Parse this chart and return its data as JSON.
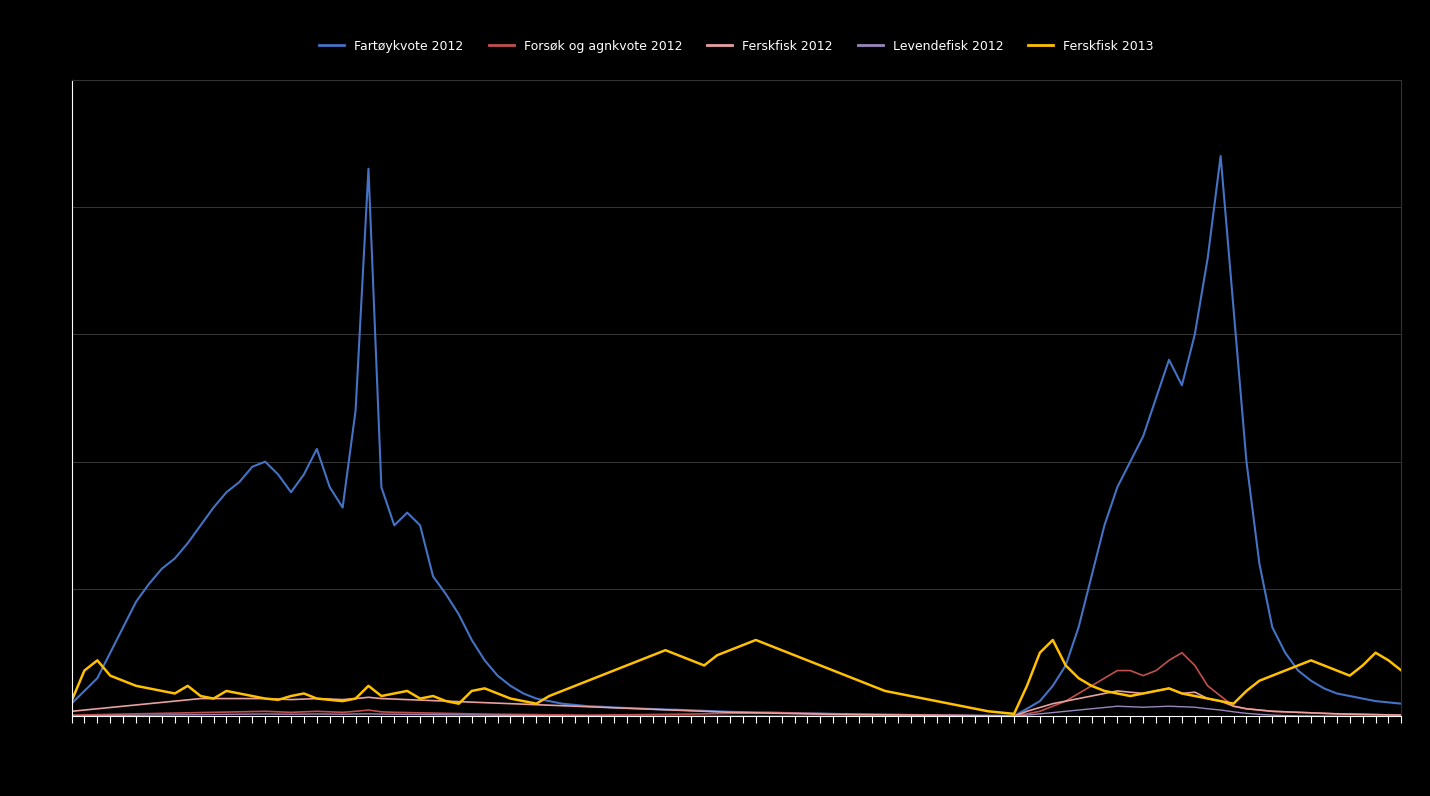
{
  "background_color": "#000000",
  "text_color": "#ffffff",
  "grid_color": "#404040",
  "line_colors": [
    "#4472C4",
    "#C0504D",
    "#E8A0A0",
    "#9B86BD",
    "#FFC000"
  ],
  "line_widths": [
    1.5,
    1.2,
    1.2,
    1.0,
    1.8
  ],
  "legend_labels": [
    "Fartøykvote 2012",
    "Forsøk og agnkvote 2012",
    "Ferskfisk 2012",
    "Levendefisk 2012",
    "Ferskfisk 2013"
  ],
  "ylim": [
    0,
    25000
  ],
  "yticks": [
    0,
    5000,
    10000,
    15000,
    20000,
    25000
  ],
  "n_ticks": 104,
  "series": {
    "blue": [
      500,
      1000,
      1500,
      2500,
      3500,
      4500,
      5200,
      5800,
      6200,
      6800,
      7500,
      8200,
      8800,
      9200,
      9800,
      10000,
      9500,
      8800,
      9500,
      10500,
      9000,
      8200,
      12000,
      21500,
      9000,
      7500,
      8000,
      7500,
      5500,
      4800,
      4000,
      3000,
      2200,
      1600,
      1200,
      900,
      700,
      600,
      500,
      450,
      400,
      380,
      350,
      330,
      310,
      290,
      270,
      260,
      240,
      220,
      200,
      180,
      170,
      160,
      150,
      140,
      130,
      120,
      110,
      100,
      90,
      80,
      75,
      70,
      65,
      60,
      55,
      50,
      45,
      40,
      35,
      30,
      25,
      20,
      300,
      600,
      1200,
      2000,
      3500,
      5500,
      7500,
      9000,
      10000,
      11000,
      12500,
      14000,
      13000,
      15000,
      18000,
      22000,
      16000,
      10000,
      6000,
      3500,
      2500,
      1800,
      1400,
      1100,
      900,
      800,
      700,
      600,
      550,
      500
    ],
    "red": [
      50,
      60,
      70,
      80,
      90,
      100,
      110,
      120,
      130,
      140,
      150,
      160,
      170,
      180,
      190,
      200,
      180,
      160,
      180,
      200,
      180,
      160,
      200,
      250,
      180,
      160,
      150,
      140,
      130,
      120,
      110,
      100,
      90,
      85,
      80,
      75,
      70,
      65,
      60,
      55,
      50,
      55,
      60,
      65,
      70,
      75,
      80,
      85,
      90,
      100,
      110,
      120,
      130,
      140,
      150,
      140,
      130,
      120,
      110,
      100,
      90,
      80,
      75,
      70,
      65,
      60,
      55,
      50,
      45,
      40,
      35,
      30,
      25,
      20,
      100,
      200,
      400,
      600,
      900,
      1200,
      1500,
      1800,
      1800,
      1600,
      1800,
      2200,
      2500,
      2000,
      1200,
      800,
      400,
      300,
      250,
      200,
      180,
      160,
      140,
      120,
      100,
      90,
      80,
      70,
      60,
      50
    ],
    "pink": [
      200,
      250,
      300,
      350,
      400,
      450,
      500,
      550,
      600,
      650,
      700,
      700,
      700,
      700,
      700,
      700,
      680,
      660,
      680,
      700,
      680,
      660,
      700,
      750,
      700,
      680,
      660,
      640,
      620,
      600,
      580,
      560,
      540,
      520,
      500,
      480,
      460,
      440,
      420,
      400,
      380,
      360,
      340,
      320,
      300,
      280,
      260,
      240,
      220,
      200,
      180,
      160,
      150,
      140,
      130,
      120,
      110,
      100,
      90,
      80,
      75,
      70,
      65,
      60,
      55,
      50,
      45,
      40,
      35,
      30,
      25,
      20,
      15,
      10,
      200,
      350,
      500,
      600,
      700,
      800,
      900,
      1000,
      950,
      900,
      1000,
      1100,
      900,
      950,
      700,
      600,
      400,
      300,
      250,
      200,
      180,
      160,
      140,
      120,
      100,
      90,
      80,
      70,
      60,
      50
    ],
    "purple": [
      20,
      25,
      30,
      35,
      40,
      45,
      50,
      55,
      60,
      65,
      70,
      75,
      80,
      85,
      90,
      95,
      90,
      85,
      90,
      95,
      90,
      85,
      95,
      100,
      90,
      85,
      80,
      75,
      70,
      65,
      60,
      55,
      50,
      45,
      40,
      35,
      30,
      25,
      20,
      18,
      16,
      14,
      12,
      10,
      8,
      6,
      5,
      4,
      3,
      2,
      2,
      2,
      2,
      2,
      2,
      2,
      2,
      2,
      2,
      2,
      2,
      2,
      2,
      2,
      2,
      2,
      2,
      2,
      2,
      2,
      2,
      2,
      2,
      2,
      50,
      100,
      150,
      200,
      250,
      300,
      350,
      400,
      380,
      360,
      380,
      400,
      380,
      360,
      300,
      250,
      180,
      120,
      80,
      50,
      30,
      20,
      15,
      10,
      8,
      6,
      5,
      4,
      3,
      2
    ],
    "yellow": [
      600,
      1800,
      2200,
      1600,
      1400,
      1200,
      1100,
      1000,
      900,
      1200,
      800,
      700,
      1000,
      900,
      800,
      700,
      650,
      800,
      900,
      700,
      650,
      600,
      700,
      1200,
      800,
      900,
      1000,
      700,
      800,
      600,
      500,
      1000,
      1100,
      900,
      700,
      600,
      500,
      800,
      1000,
      1200,
      1400,
      1600,
      1800,
      2000,
      2200,
      2400,
      2600,
      2400,
      2200,
      2000,
      2400,
      2600,
      2800,
      3000,
      2800,
      2600,
      2400,
      2200,
      2000,
      1800,
      1600,
      1400,
      1200,
      1000,
      900,
      800,
      700,
      600,
      500,
      400,
      300,
      200,
      150,
      100,
      1200,
      2500,
      3000,
      2000,
      1500,
      1200,
      1000,
      900,
      800,
      900,
      1000,
      1100,
      900,
      800,
      700,
      600,
      500,
      1000,
      1400,
      1600,
      1800,
      2000,
      2200,
      2000,
      1800,
      1600,
      2000,
      2500,
      2200,
      1800
    ]
  }
}
